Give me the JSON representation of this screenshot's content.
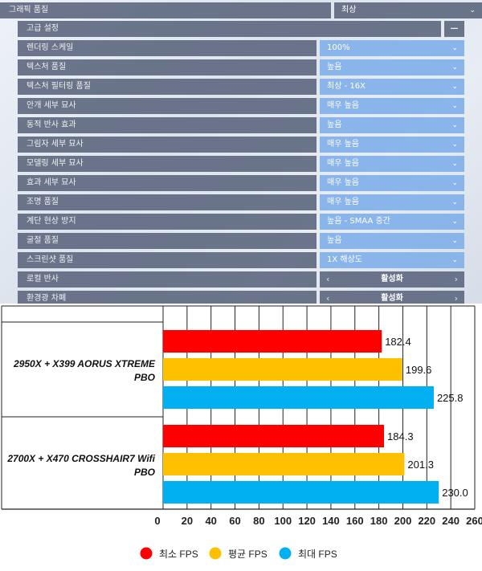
{
  "settings": {
    "graphics_quality": {
      "label": "그래픽 품질",
      "value": "최상"
    },
    "advanced": {
      "label": "고급 설정",
      "toggle": "—"
    },
    "rows": [
      {
        "label": "렌더링 스케일",
        "value": "100%"
      },
      {
        "label": "텍스처 품질",
        "value": "높음"
      },
      {
        "label": "텍스처 필터링 품질",
        "value": "최상 - 16X"
      },
      {
        "label": "안개 세부 묘사",
        "value": "매우 높음"
      },
      {
        "label": "동적 반사 효과",
        "value": "높음"
      },
      {
        "label": "그림자 세부 묘사",
        "value": "매우 높음"
      },
      {
        "label": "모델링 세부 묘사",
        "value": "매우 높음"
      },
      {
        "label": "효과 세부 묘사",
        "value": "매우 높음"
      },
      {
        "label": "조명 품질",
        "value": "매우 높음"
      },
      {
        "label": "계단 현상 방지",
        "value": "높음 - SMAA 중간"
      },
      {
        "label": "굴절 품질",
        "value": "높음"
      },
      {
        "label": "스크린샷 품질",
        "value": "1X 해상도"
      }
    ],
    "toggles": [
      {
        "label": "로컬 반사",
        "value": "활성화"
      },
      {
        "label": "환경광 차폐",
        "value": "활성화"
      }
    ],
    "colors": {
      "label_bg": "#606980",
      "value_bg": "#85b2e9"
    }
  },
  "chart_data": {
    "type": "bar",
    "orientation": "horizontal",
    "categories": [
      "2950X + X399 AORUS XTREME PBO",
      "2700X + X470 CROSSHAIR7 Wifi PBO"
    ],
    "category_lines": [
      [
        "2950X + X399 AORUS XTREME",
        "PBO"
      ],
      [
        "2700X + X470 CROSSHAIR7 Wifi",
        "PBO"
      ]
    ],
    "series": [
      {
        "name": "최소 FPS",
        "color": "#ff0000",
        "values": [
          182.4,
          184.3
        ]
      },
      {
        "name": "평균 FPS",
        "color": "#ffc000",
        "values": [
          199.6,
          201.3
        ]
      },
      {
        "name": "최대 FPS",
        "color": "#00b0f0",
        "values": [
          225.8,
          230.0
        ]
      }
    ],
    "xlim": [
      0,
      260
    ],
    "xticks": [
      0,
      20,
      40,
      60,
      80,
      100,
      120,
      140,
      160,
      180,
      200,
      220,
      240,
      260
    ],
    "value_labels": [
      "182.4",
      "184.3",
      "199.6",
      "201.3",
      "225.8",
      "230.0"
    ],
    "grid": true,
    "legend": "bottom"
  }
}
